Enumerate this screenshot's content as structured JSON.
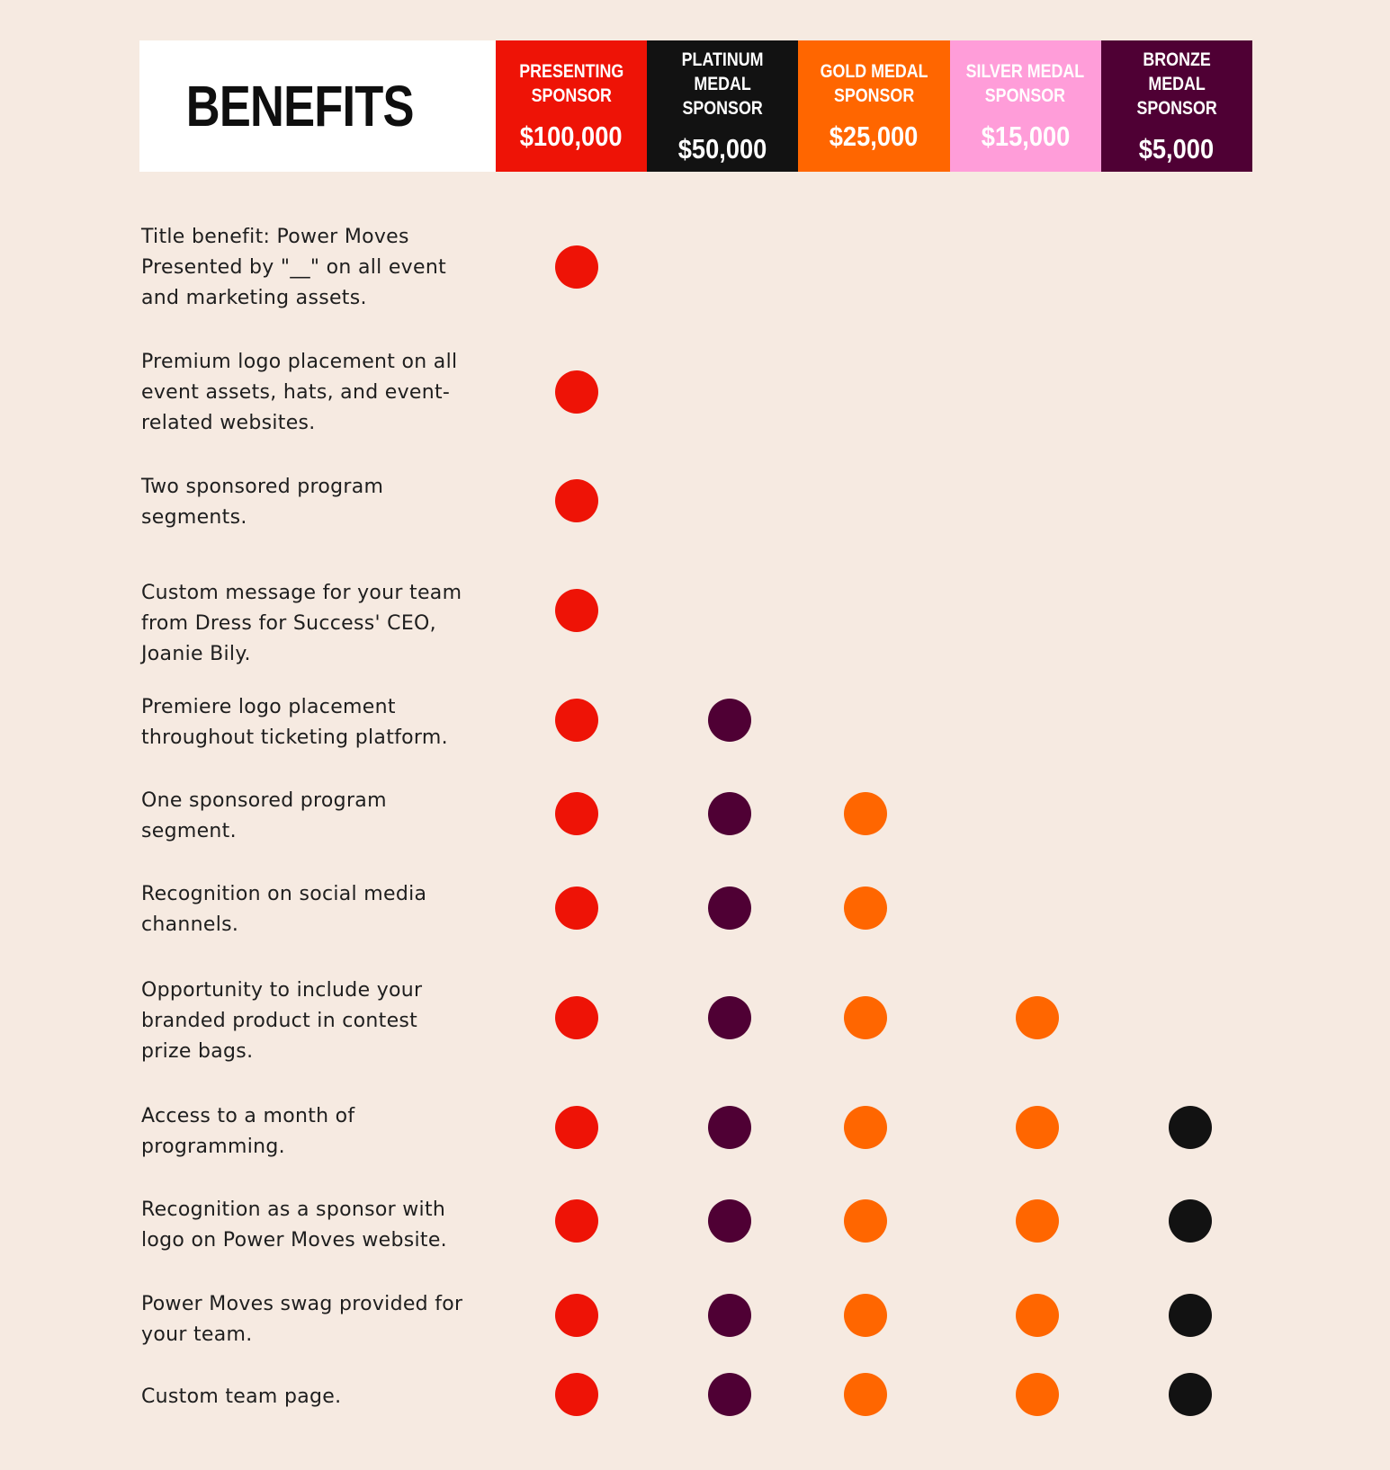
{
  "title": "BENEFITS",
  "tiers": [
    {
      "name": "PRESENTING\nSPONSOR",
      "price": "$100,000",
      "header_color": "#ee1306",
      "dot_color": "#ee1306",
      "name_color": "#ffffff"
    },
    {
      "name": "PLATINUM MEDAL\nSPONSOR",
      "price": "$50,000",
      "header_color": "#121212",
      "dot_color": "#4f0034",
      "name_color": "#ffffff"
    },
    {
      "name": "GOLD MEDAL\nSPONSOR",
      "price": "$25,000",
      "header_color": "#ff6600",
      "dot_color": "#ff6600",
      "name_color": "#ffffff"
    },
    {
      "name": "SILVER MEDAL\nSPONSOR",
      "price": "$15,000",
      "header_color": "#ff9dd9",
      "dot_color": "#ff6600",
      "name_color": "#ffffff"
    },
    {
      "name": "BRONZE MEDAL\nSPONSOR",
      "price": "$5,000",
      "header_color": "#4f0034",
      "dot_color": "#121212",
      "name_color": "#ffffff"
    }
  ],
  "benefits": [
    {
      "text": "Title benefit: Power Moves Presented by \"__\" on all event and marketing assets.",
      "tiers_included": [
        true,
        false,
        false,
        false,
        false
      ]
    },
    {
      "text": "Premium logo placement on all event assets, hats, and event-related websites.",
      "tiers_included": [
        true,
        false,
        false,
        false,
        false
      ]
    },
    {
      "text": "Two sponsored program segments.",
      "tiers_included": [
        true,
        false,
        false,
        false,
        false
      ]
    },
    {
      "text": "Custom message for your team from Dress for Success'  CEO, Joanie Bily.",
      "tiers_included": [
        true,
        false,
        false,
        false,
        false
      ]
    },
    {
      "text": "Premiere logo placement throughout ticketing platform.",
      "tiers_included": [
        true,
        true,
        false,
        false,
        false
      ]
    },
    {
      "text": "One sponsored program segment.",
      "tiers_included": [
        true,
        true,
        true,
        false,
        false
      ]
    },
    {
      "text": "Recognition on social media channels.",
      "tiers_included": [
        true,
        true,
        true,
        false,
        false
      ]
    },
    {
      "text": "Opportunity to include your branded product in contest prize bags.",
      "tiers_included": [
        true,
        true,
        true,
        true,
        false
      ]
    },
    {
      "text": "Access to a month of programming.",
      "tiers_included": [
        true,
        true,
        true,
        true,
        true
      ]
    },
    {
      "text": "Recognition as a sponsor with logo on  Power Moves website.",
      "tiers_included": [
        true,
        true,
        true,
        true,
        true
      ]
    },
    {
      "text": "Power Moves swag provided for your team.",
      "tiers_included": [
        true,
        true,
        true,
        true,
        true
      ]
    },
    {
      "text": "Custom team page.",
      "tiers_included": [
        true,
        true,
        true,
        true,
        true
      ]
    }
  ],
  "colors": {
    "background": "#f6eae1",
    "text": "#1e1e1e"
  }
}
